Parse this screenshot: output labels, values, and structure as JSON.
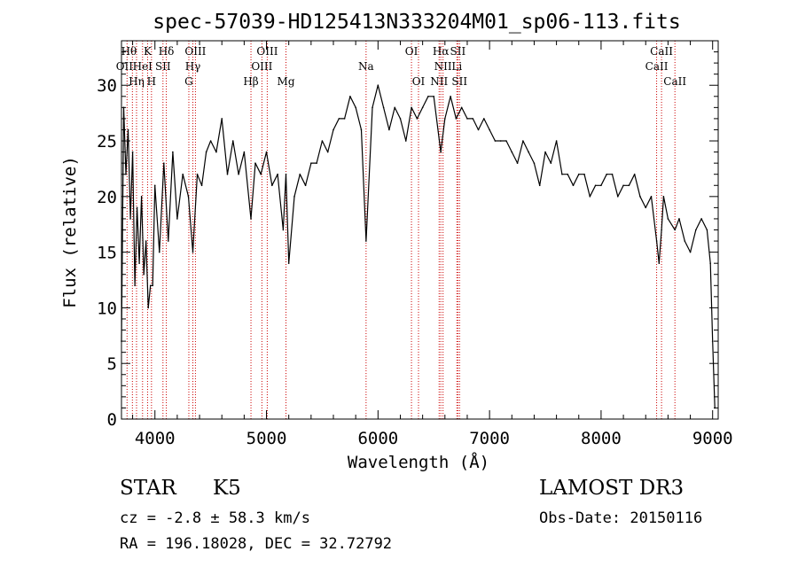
{
  "chart_data": {
    "type": "line",
    "title": "spec-57039-HD125413N333204M01_sp06-113.fits",
    "xlabel": "Wavelength (Å)",
    "ylabel": "Flux (relative)",
    "xlim": [
      3700,
      9050
    ],
    "ylim": [
      0,
      34
    ],
    "xticks": [
      4000,
      5000,
      6000,
      7000,
      8000,
      9000
    ],
    "yticks": [
      0,
      5,
      10,
      15,
      20,
      25,
      30
    ],
    "line_color": "#000000",
    "marker_color": "#cc0000",
    "series": [
      {
        "x": [
          3700,
          3720,
          3740,
          3760,
          3780,
          3800,
          3820,
          3840,
          3860,
          3880,
          3900,
          3920,
          3940,
          3960,
          3980,
          4000,
          4040,
          4080,
          4120,
          4160,
          4200,
          4250,
          4300,
          4340,
          4380,
          4420,
          4460,
          4500,
          4550,
          4600,
          4650,
          4700,
          4750,
          4800,
          4861,
          4900,
          4950,
          5000,
          5050,
          5100,
          5150,
          5175,
          5200,
          5250,
          5300,
          5350,
          5400,
          5450,
          5500,
          5550,
          5600,
          5650,
          5700,
          5750,
          5800,
          5850,
          5893,
          5950,
          6000,
          6050,
          6100,
          6150,
          6200,
          6250,
          6300,
          6350,
          6400,
          6450,
          6500,
          6563,
          6600,
          6650,
          6700,
          6750,
          6800,
          6850,
          6900,
          6950,
          7000,
          7050,
          7100,
          7150,
          7200,
          7250,
          7300,
          7350,
          7400,
          7450,
          7500,
          7550,
          7600,
          7650,
          7700,
          7750,
          7800,
          7850,
          7900,
          7950,
          8000,
          8050,
          8100,
          8150,
          8200,
          8250,
          8300,
          8350,
          8400,
          8450,
          8498,
          8520,
          8542,
          8560,
          8600,
          8662,
          8700,
          8750,
          8800,
          8850,
          8900,
          8950,
          8980,
          9000,
          9020
        ],
        "y": [
          7,
          28,
          22,
          26,
          18,
          24,
          12,
          19,
          14,
          20,
          13,
          16,
          10,
          12,
          12,
          21,
          15,
          23,
          16,
          24,
          18,
          22,
          20,
          15,
          22,
          21,
          24,
          25,
          24,
          27,
          22,
          25,
          22,
          24,
          18,
          23,
          22,
          24,
          21,
          22,
          17,
          22,
          14,
          20,
          22,
          21,
          23,
          23,
          25,
          24,
          26,
          27,
          27,
          29,
          28,
          26,
          16,
          28,
          30,
          28,
          26,
          28,
          27,
          25,
          28,
          27,
          28,
          29,
          29,
          24,
          27,
          29,
          27,
          28,
          27,
          27,
          26,
          27,
          26,
          25,
          25,
          25,
          24,
          23,
          25,
          24,
          23,
          21,
          24,
          23,
          25,
          22,
          22,
          21,
          22,
          22,
          20,
          21,
          21,
          22,
          22,
          20,
          21,
          21,
          22,
          20,
          19,
          20,
          16,
          14,
          17,
          20,
          18,
          17,
          18,
          16,
          15,
          17,
          18,
          17,
          14,
          7,
          1
        ]
      }
    ],
    "lines": [
      {
        "x": 3750,
        "labels": [
          "Hθ",
          "OII",
          "Hη"
        ]
      },
      {
        "x": 3798,
        "labels": [
          "Hθ"
        ]
      },
      {
        "x": 3835,
        "labels": [
          "Hη"
        ]
      },
      {
        "x": 3889,
        "labels": [
          "HeI"
        ]
      },
      {
        "x": 3934,
        "labels": [
          "K"
        ]
      },
      {
        "x": 3969,
        "labels": [
          "H"
        ]
      },
      {
        "x": 4072,
        "labels": [
          "SII"
        ]
      },
      {
        "x": 4102,
        "labels": [
          "Hδ"
        ]
      },
      {
        "x": 4304,
        "labels": [
          "G"
        ]
      },
      {
        "x": 4340,
        "labels": [
          "Hγ"
        ]
      },
      {
        "x": 4363,
        "labels": [
          "OIII"
        ]
      },
      {
        "x": 4861,
        "labels": [
          "Hβ"
        ]
      },
      {
        "x": 4959,
        "labels": [
          "OIII"
        ]
      },
      {
        "x": 5007,
        "labels": [
          "OIII"
        ]
      },
      {
        "x": 5175,
        "labels": [
          "Mg"
        ]
      },
      {
        "x": 5893,
        "labels": [
          "Na"
        ]
      },
      {
        "x": 6300,
        "labels": [
          "OI"
        ]
      },
      {
        "x": 6363,
        "labels": [
          "OI"
        ]
      },
      {
        "x": 6548,
        "labels": [
          "NII"
        ]
      },
      {
        "x": 6563,
        "labels": [
          "Hα"
        ]
      },
      {
        "x": 6583,
        "labels": [
          "NII"
        ]
      },
      {
        "x": 6707,
        "labels": [
          "Li"
        ]
      },
      {
        "x": 6716,
        "labels": [
          "SII"
        ]
      },
      {
        "x": 6731,
        "labels": [
          "SII"
        ]
      },
      {
        "x": 8498,
        "labels": [
          "CaII"
        ]
      },
      {
        "x": 8542,
        "labels": [
          "CaII"
        ]
      },
      {
        "x": 8662,
        "labels": [
          "CaII"
        ]
      }
    ],
    "annotations": [
      {
        "label": "Hθ",
        "x": 3767,
        "row": 0
      },
      {
        "label": "K",
        "x": 3934,
        "row": 0
      },
      {
        "label": "Hδ",
        "x": 4102,
        "row": 0
      },
      {
        "label": "OIII",
        "x": 4363,
        "row": 0
      },
      {
        "label": "OIII",
        "x": 5007,
        "row": 0
      },
      {
        "label": "OI",
        "x": 6300,
        "row": 0
      },
      {
        "label": "Hα",
        "x": 6563,
        "row": 0
      },
      {
        "label": "SII",
        "x": 6716,
        "row": 0
      },
      {
        "label": "CaII",
        "x": 8542,
        "row": 0
      },
      {
        "label": "OII",
        "x": 3727,
        "row": 1
      },
      {
        "label": "HeI",
        "x": 3889,
        "row": 1
      },
      {
        "label": "SII",
        "x": 4072,
        "row": 1
      },
      {
        "label": "Hγ",
        "x": 4340,
        "row": 1
      },
      {
        "label": "OIII",
        "x": 4959,
        "row": 1
      },
      {
        "label": "Na",
        "x": 5893,
        "row": 1
      },
      {
        "label": "NII",
        "x": 6583,
        "row": 1
      },
      {
        "label": "Li",
        "x": 6707,
        "row": 1
      },
      {
        "label": "CaII",
        "x": 8498,
        "row": 1
      },
      {
        "label": "Hη",
        "x": 3835,
        "row": 2
      },
      {
        "label": "H",
        "x": 3969,
        "row": 2
      },
      {
        "label": "G",
        "x": 4304,
        "row": 2
      },
      {
        "label": "Hβ",
        "x": 4861,
        "row": 2
      },
      {
        "label": "Mg",
        "x": 5175,
        "row": 2
      },
      {
        "label": "OI",
        "x": 6363,
        "row": 2
      },
      {
        "label": "NII",
        "x": 6548,
        "row": 2
      },
      {
        "label": "SII",
        "x": 6731,
        "row": 2
      },
      {
        "label": "CaII",
        "x": 8662,
        "row": 2
      }
    ]
  },
  "info": {
    "class": "STAR",
    "subclass": "K5",
    "survey": "LAMOST DR3",
    "cz": "cz = -2.8 ± 58.3 km/s",
    "obs_date": "Obs-Date: 20150116",
    "radec": "RA = 196.18028, DEC =  32.72792"
  }
}
